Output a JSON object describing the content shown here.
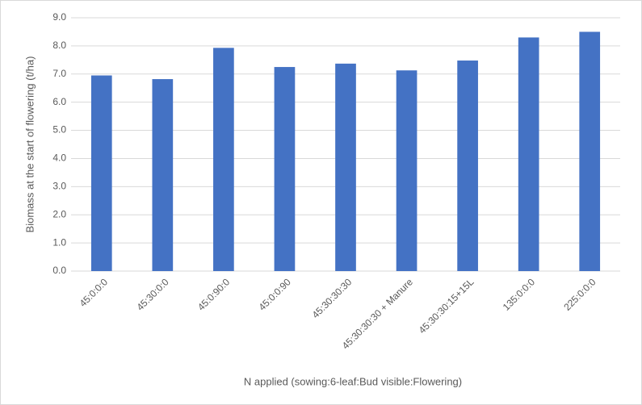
{
  "chart_data": {
    "type": "bar",
    "x_label": "N applied (sowing:6-leaf:Bud visible:Flowering)",
    "y_label": "Biomass at the start of flowering  (t/ha)",
    "categories": [
      "45:0:0:0",
      "45:30:0:0",
      "45:0:90:0",
      "45:0:0:90",
      "45:30:30:30",
      "45:30:30:30 + Manure",
      "45:30:30:15+15L",
      "135:0:0:0",
      "225:0:0:0"
    ],
    "values": [
      6.95,
      6.82,
      7.93,
      7.25,
      7.37,
      7.13,
      7.48,
      8.3,
      8.5
    ],
    "color": "#4472c4",
    "ylim": [
      0,
      9
    ],
    "yticks": [
      {
        "value": 0,
        "label": "0.0"
      },
      {
        "value": 1,
        "label": "1.0"
      },
      {
        "value": 2,
        "label": "2.0"
      },
      {
        "value": 3,
        "label": "3.0"
      },
      {
        "value": 4,
        "label": "4.0"
      },
      {
        "value": 5,
        "label": "5.0"
      },
      {
        "value": 6,
        "label": "6.0"
      },
      {
        "value": 7,
        "label": "7.0"
      },
      {
        "value": 8,
        "label": "8.0"
      },
      {
        "value": 9,
        "label": "9.0"
      }
    ],
    "grid": true
  }
}
